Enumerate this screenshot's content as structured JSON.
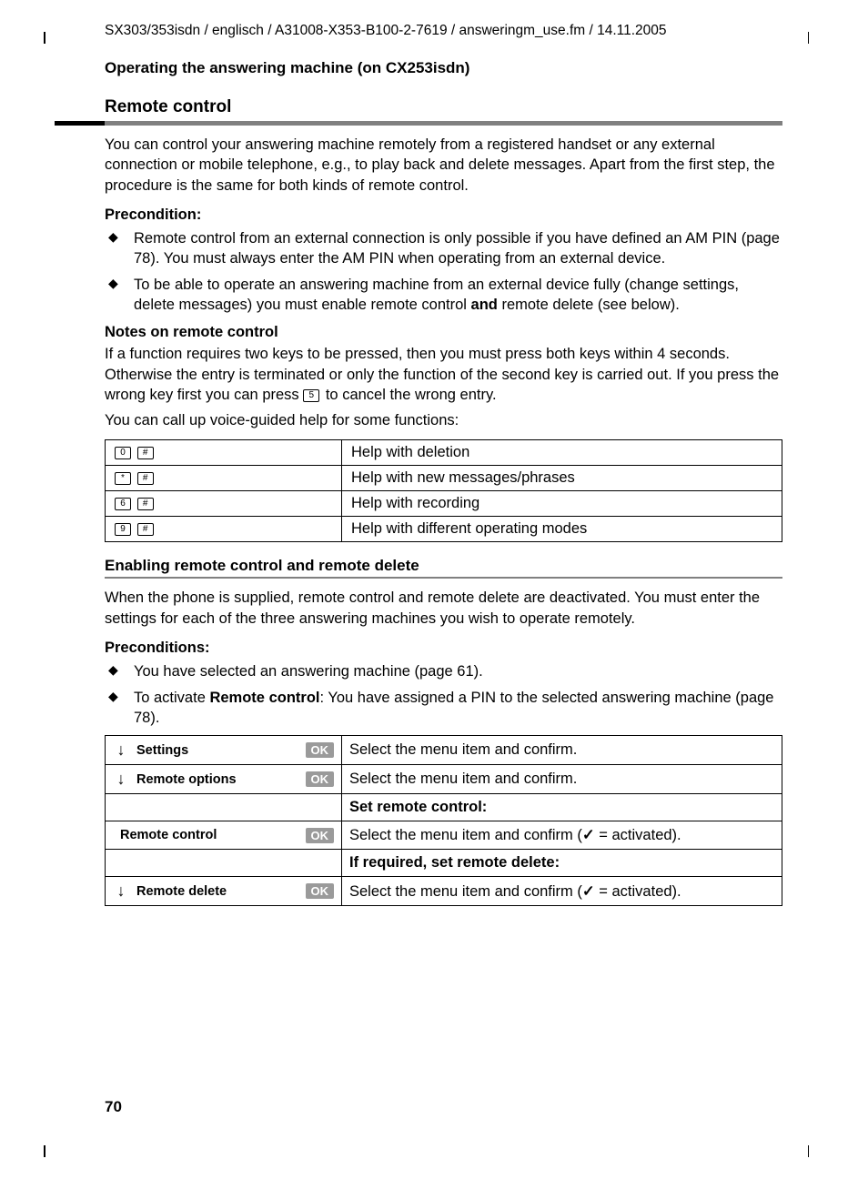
{
  "header_path": "SX303/353isdn / englisch / A31008-X353-B100-2-7619 / answeringm_use.fm / 14.11.2005",
  "heading1": "Operating the answering machine   (on CX253isdn)",
  "heading2": "Remote control",
  "intro": "You can control your answering machine remotely from a registered handset or any external connection or mobile telephone, e.g., to play back and delete messages. Apart from the first step, the procedure is the same for both kinds of remote control.",
  "precondition_label": "Precondition:",
  "preconditions1": [
    "Remote control from an external connection is only possible if you have defined an AM PIN (page 78). You must always enter the AM PIN when operating from an external device.",
    "To be able to operate an answering machine from an external device fully (change settings, delete messages) you must enable remote control "
  ],
  "precond1_bold": "and",
  "precond1_tail": " remote delete (see below).",
  "notes_heading": "Notes on remote control",
  "notes_body_a": "If a function requires two keys to be pressed, then you must press both keys within 4 seconds. Otherwise the entry is terminated or only the function of the second key is carried out. If you press the wrong key first you can press ",
  "notes_key": "5",
  "notes_body_b": " to cancel the wrong entry.",
  "voice_help": "You can call up voice-guided help for some functions:",
  "help_table": [
    {
      "k1": "0",
      "k2": "#",
      "desc": "Help with deletion"
    },
    {
      "k1": "*",
      "k2": "#",
      "desc": "Help with new messages/phrases"
    },
    {
      "k1": "6",
      "k2": "#",
      "desc": "Help with recording"
    },
    {
      "k1": "9",
      "k2": "#",
      "desc": "Help with different operating modes"
    }
  ],
  "heading3": "Enabling remote control and remote delete",
  "enable_intro": "When the phone is supplied, remote control and remote delete are deactivated. You must enter the settings for each of the three answering machines you wish to operate remotely.",
  "preconditions2_label": "Preconditions:",
  "precond2_item1": "You have selected an answering machine (page 61).",
  "precond2_item2a": "To activate ",
  "precond2_item2b": "Remote control",
  "precond2_item2c": ": You have assigned a PIN to the selected answering machine (page 78).",
  "ok_label": "OK",
  "menu_rows": [
    {
      "type": "nav",
      "arrow": true,
      "label": "Settings",
      "ok": true,
      "desc": "Select the menu item and confirm."
    },
    {
      "type": "nav",
      "arrow": true,
      "label": "Remote options",
      "ok": true,
      "desc": "Select the menu item and confirm."
    },
    {
      "type": "sub",
      "desc_bold": "Set remote control:"
    },
    {
      "type": "nav",
      "arrow": false,
      "label": "Remote control",
      "ok": true,
      "desc_lead": "Select the menu item and confirm (",
      "desc_tail": " = activated)."
    },
    {
      "type": "sub",
      "desc_bold": "If required, set remote delete:"
    },
    {
      "type": "nav",
      "arrow": true,
      "label": "Remote delete",
      "ok": true,
      "desc_lead": "Select the menu item and confirm (",
      "desc_tail": " = activated)."
    }
  ],
  "page_number": "70"
}
